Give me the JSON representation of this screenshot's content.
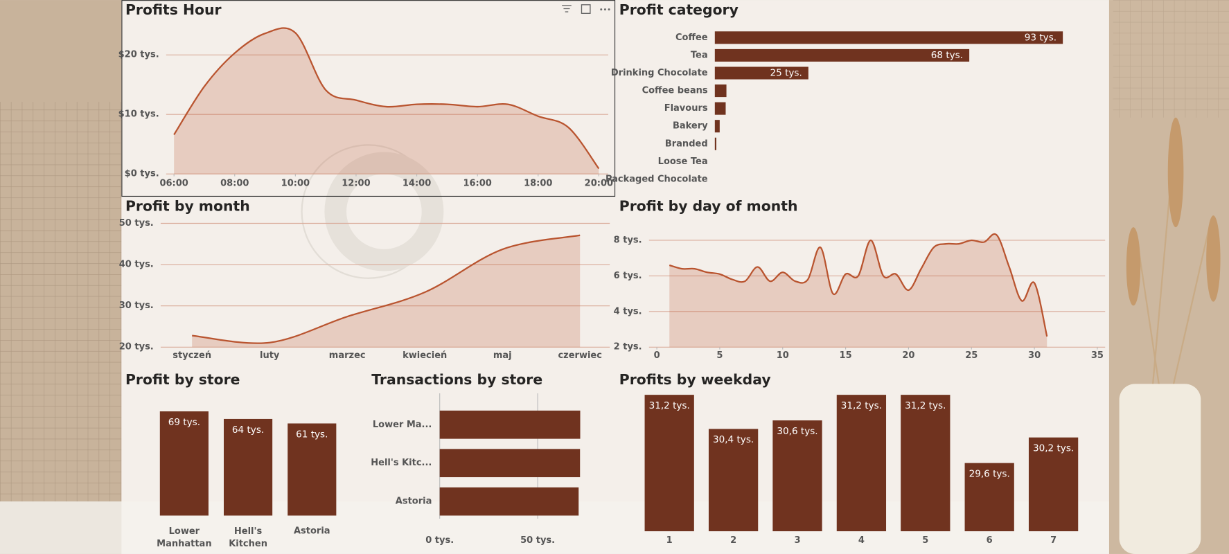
{
  "chart_data": [
    {
      "type": "area",
      "title": "Profits Hour",
      "x": [
        6,
        7,
        8,
        9,
        10,
        11,
        12,
        13,
        14,
        15,
        16,
        17,
        18,
        19,
        20
      ],
      "values": [
        6.6,
        14.7,
        20.3,
        23.6,
        23.7,
        14.1,
        12.4,
        11.3,
        11.7,
        11.7,
        11.3,
        11.7,
        9.7,
        7.8,
        0.9
      ],
      "color": "#b9542f",
      "xlim": [
        6,
        20
      ],
      "ylim": [
        0,
        25
      ],
      "xticks": [
        {
          "value": 6,
          "label": "06:00"
        },
        {
          "value": 8,
          "label": "08:00"
        },
        {
          "value": 10,
          "label": "10:00"
        },
        {
          "value": 12,
          "label": "12:00"
        },
        {
          "value": 14,
          "label": "14:00"
        },
        {
          "value": 16,
          "label": "16:00"
        },
        {
          "value": 18,
          "label": "18:00"
        },
        {
          "value": 20,
          "label": "20:00"
        }
      ],
      "yticks": [
        {
          "value": 0,
          "label": "$0 tys."
        },
        {
          "value": 10,
          "label": "$10 tys."
        },
        {
          "value": 20,
          "label": "$20 tys."
        }
      ],
      "grid": true
    },
    {
      "type": "bar",
      "orientation": "horizontal",
      "title": "Profit category",
      "categories": [
        "Coffee",
        "Tea",
        "Drinking Chocolate",
        "Coffee beans",
        "Flavours",
        "Bakery",
        "Branded",
        "Loose Tea",
        "Packaged Chocolate"
      ],
      "values": [
        93,
        68,
        25,
        3.1,
        2.9,
        1.3,
        0.4,
        0,
        0
      ],
      "value_labels": [
        "93 tys.",
        "68 tys.",
        "25 tys.",
        null,
        null,
        null,
        null,
        null,
        null
      ],
      "color": "#70331f"
    },
    {
      "type": "area",
      "title": "Profit by month",
      "categories": [
        "styczeń",
        "luty",
        "marzec",
        "kwiecień",
        "maj",
        "czerwiec"
      ],
      "values": [
        22.8,
        21.1,
        27.4,
        33.3,
        43.7,
        47.1
      ],
      "color": "#b9542f",
      "ylim": [
        20,
        50
      ],
      "yticks": [
        {
          "value": 20,
          "label": "20 tys."
        },
        {
          "value": 30,
          "label": "30 tys."
        },
        {
          "value": 40,
          "label": "40 tys."
        },
        {
          "value": 50,
          "label": "50 tys."
        }
      ],
      "grid": true
    },
    {
      "type": "area",
      "title": "Profit by day of month",
      "x": [
        1,
        2,
        3,
        4,
        5,
        6,
        7,
        8,
        9,
        10,
        11,
        12,
        13,
        14,
        15,
        16,
        17,
        18,
        19,
        20,
        21,
        22,
        23,
        24,
        25,
        26,
        27,
        28,
        29,
        30,
        31
      ],
      "values": [
        6.6,
        6.4,
        6.4,
        6.2,
        6.1,
        5.8,
        5.7,
        6.5,
        5.7,
        6.2,
        5.7,
        5.8,
        7.6,
        5.0,
        6.1,
        6.0,
        8.0,
        6.0,
        6.1,
        5.2,
        6.4,
        7.6,
        7.8,
        7.8,
        8.0,
        7.9,
        8.3,
        6.5,
        4.6,
        5.6,
        2.6
      ],
      "color": "#b9542f",
      "xlim": [
        0,
        35
      ],
      "ylim": [
        2,
        8.6
      ],
      "xticks": [
        0,
        5,
        10,
        15,
        20,
        25,
        30,
        35
      ],
      "yticks": [
        {
          "value": 2,
          "label": "2 tys."
        },
        {
          "value": 4,
          "label": "4 tys."
        },
        {
          "value": 6,
          "label": "6 tys."
        },
        {
          "value": 8,
          "label": "8 tys."
        }
      ],
      "grid": true
    },
    {
      "type": "bar",
      "orientation": "vertical",
      "title": "Profit by store",
      "categories": [
        "Lower Manhattan",
        "Hell's Kitchen",
        "Astoria"
      ],
      "values": [
        69,
        64,
        61
      ],
      "value_labels": [
        "69 tys.",
        "64 tys.",
        "61 tys."
      ],
      "color": "#70331f"
    },
    {
      "type": "bar",
      "orientation": "horizontal",
      "title": "Transactions by store",
      "categories": [
        "Lower Ma...",
        "Hell's Kitc...",
        "Astoria"
      ],
      "values": [
        71.7,
        71.6,
        70.9
      ],
      "color": "#70331f",
      "xlim": [
        0,
        85
      ],
      "xticks": [
        {
          "value": 0,
          "label": "0 tys."
        },
        {
          "value": 50,
          "label": "50 tys."
        }
      ],
      "grid": true
    },
    {
      "type": "bar",
      "orientation": "vertical",
      "title": "Profits by weekday",
      "categories": [
        "1",
        "2",
        "3",
        "4",
        "5",
        "6",
        "7"
      ],
      "values": [
        31.2,
        30.4,
        30.6,
        31.2,
        31.2,
        29.6,
        30.2
      ],
      "value_labels": [
        "31,2 tys.",
        "30,4 tys.",
        "30,6 tys.",
        "31,2 tys.",
        "31,2 tys.",
        "29,6 tys.",
        "30,2 tys."
      ],
      "color": "#70331f",
      "ylim": [
        28,
        31.4
      ]
    }
  ]
}
